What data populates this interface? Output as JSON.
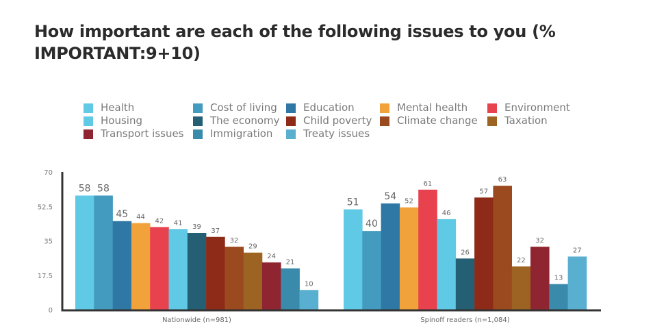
{
  "chart_data": {
    "type": "bar",
    "title": "How important are each of the following issues to you (% IMPORTANT:9+10)",
    "xlabel": "",
    "ylabel": "",
    "ylim": [
      0,
      70
    ],
    "yticks": [
      "0",
      "17.5",
      "35",
      "52.5",
      "70"
    ],
    "grid": false,
    "legend_position": "top",
    "categories": [
      "Nationwide (n=981)",
      "Spinoff readers (n=1,084)"
    ],
    "series": [
      {
        "name": "Health",
        "color": "#5fc9e6",
        "values": [
          58,
          51
        ]
      },
      {
        "name": "Cost of living",
        "color": "#439bbf",
        "values": [
          58,
          40
        ]
      },
      {
        "name": "Education",
        "color": "#2f77a5",
        "values": [
          45,
          54
        ]
      },
      {
        "name": "Mental health",
        "color": "#f2a23a",
        "values": [
          44,
          52
        ]
      },
      {
        "name": "Environment",
        "color": "#e8424f",
        "values": [
          42,
          61
        ]
      },
      {
        "name": "Housing",
        "color": "#5fc9e6",
        "values": [
          41,
          46
        ]
      },
      {
        "name": "The economy",
        "color": "#255f73",
        "values": [
          39,
          26
        ]
      },
      {
        "name": "Child poverty",
        "color": "#8e2a18",
        "values": [
          37,
          57
        ]
      },
      {
        "name": "Climate change",
        "color": "#9b4a1f",
        "values": [
          32,
          63
        ]
      },
      {
        "name": "Taxation",
        "color": "#9c6322",
        "values": [
          29,
          22
        ]
      },
      {
        "name": "Transport issues",
        "color": "#8f2530",
        "values": [
          24,
          32
        ]
      },
      {
        "name": "Immigration",
        "color": "#3a8aab",
        "values": [
          21,
          13
        ]
      },
      {
        "name": "Treaty issues",
        "color": "#58afd0",
        "values": [
          10,
          27
        ]
      }
    ]
  },
  "legend_order": [
    "Health",
    "Cost of living",
    "Education",
    "Mental health",
    "Environment",
    "Housing",
    "The economy",
    "Child poverty",
    "Climate change",
    "Taxation",
    "Transport issues",
    "Immigration",
    "Treaty issues"
  ]
}
